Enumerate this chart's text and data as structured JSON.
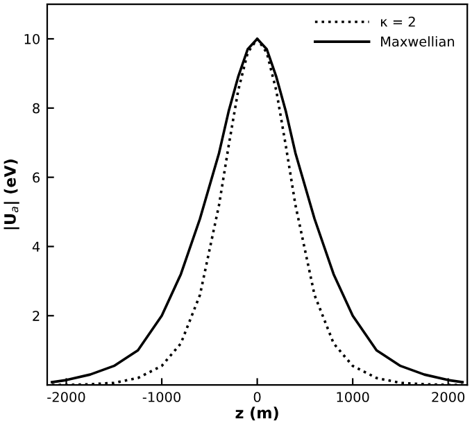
{
  "chart_data": {
    "type": "line",
    "xlabel": "z (m)",
    "ylabel": "|U$_{a}$| (eV)",
    "x": [
      -2150,
      -2000,
      -1750,
      -1500,
      -1250,
      -1000,
      -800,
      -600,
      -400,
      -300,
      -200,
      -100,
      0,
      100,
      200,
      300,
      400,
      600,
      800,
      1000,
      1250,
      1500,
      1750,
      2000,
      2150
    ],
    "series": [
      {
        "name": "κ = 2",
        "color": "#000000",
        "line_style": "dotted",
        "values": [
          0.0,
          0.0,
          0.02,
          0.06,
          0.2,
          0.55,
          1.2,
          2.6,
          5.2,
          6.9,
          8.5,
          9.6,
          10,
          9.6,
          8.5,
          6.9,
          5.2,
          2.6,
          1.2,
          0.55,
          0.2,
          0.06,
          0.02,
          0.0,
          0.0
        ]
      },
      {
        "name": "Maxwellian",
        "color": "#000000",
        "line_style": "solid",
        "values": [
          0.08,
          0.14,
          0.3,
          0.55,
          1.0,
          2.0,
          3.2,
          4.8,
          6.7,
          7.9,
          8.9,
          9.7,
          10,
          9.7,
          8.9,
          7.9,
          6.7,
          4.8,
          3.2,
          2.0,
          1.0,
          0.55,
          0.3,
          0.14,
          0.08
        ]
      }
    ],
    "xlim": [
      -2200,
      2200
    ],
    "ylim": [
      0,
      11
    ],
    "xticks": [
      -2000,
      -1000,
      0,
      1000,
      2000
    ],
    "yticks": [
      2,
      4,
      6,
      8,
      10
    ],
    "grid": false,
    "legend": "top right"
  }
}
